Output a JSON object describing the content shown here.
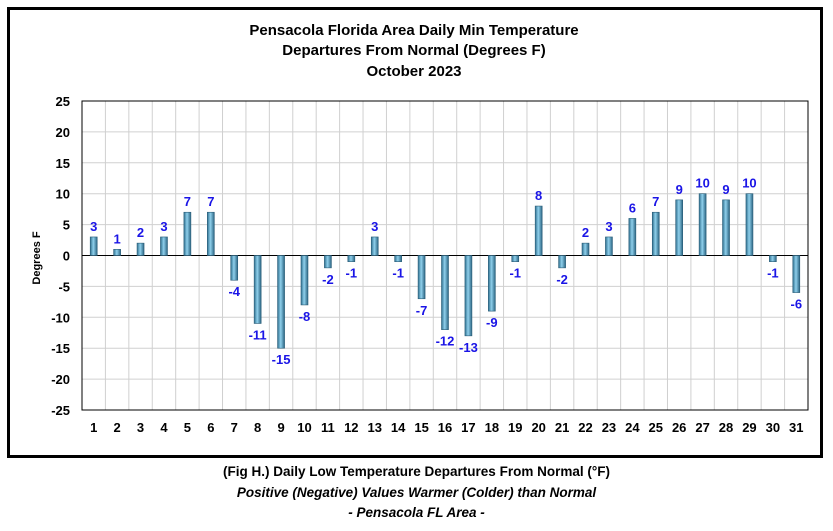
{
  "chart_data": {
    "type": "bar",
    "title_lines": [
      "Pensacola Florida Area Daily Min Temperature",
      "Departures From Normal (Degrees F)",
      "October 2023"
    ],
    "xlabel": "",
    "ylabel": "Degrees F",
    "ylim": [
      -25,
      25
    ],
    "yticks": [
      25,
      20,
      15,
      10,
      5,
      0,
      -5,
      -10,
      -15,
      -20,
      -25
    ],
    "grid": true,
    "legend": "none",
    "categories": [
      "1",
      "2",
      "3",
      "4",
      "5",
      "6",
      "7",
      "8",
      "9",
      "10",
      "11",
      "12",
      "13",
      "14",
      "15",
      "16",
      "17",
      "18",
      "19",
      "20",
      "21",
      "22",
      "23",
      "24",
      "25",
      "26",
      "27",
      "28",
      "29",
      "30",
      "31"
    ],
    "values": [
      3,
      1,
      2,
      3,
      7,
      7,
      -4,
      -11,
      -15,
      -8,
      -2,
      -1,
      3,
      -1,
      -7,
      -12,
      -13,
      -9,
      -1,
      8,
      -2,
      2,
      3,
      6,
      7,
      9,
      10,
      9,
      10,
      -1,
      -6
    ],
    "bar_color": "#4a9fc4",
    "label_color": "#1a14e6"
  },
  "captions": {
    "line1": "(Fig H.) Daily Low Temperature Departures From Normal (°F)",
    "line2": "Positive (Negative) Values Warmer (Colder) than Normal",
    "line3": "- Pensacola FL Area -"
  }
}
